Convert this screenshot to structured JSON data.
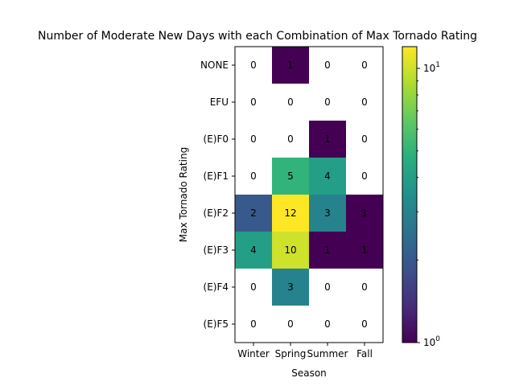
{
  "chart_data": {
    "type": "heatmap",
    "title": "Number of Moderate New Days with each Combination of Max Tornado Rating",
    "xlabel": "Season",
    "ylabel": "Max Tornado Rating",
    "x_categories": [
      "Winter",
      "Spring",
      "Summer",
      "Fall"
    ],
    "y_categories": [
      "NONE",
      "EFU",
      "(E)F0",
      "(E)F1",
      "(E)F2",
      "(E)F3",
      "(E)F4",
      "(E)F5"
    ],
    "values": [
      [
        0,
        1,
        0,
        0
      ],
      [
        0,
        0,
        0,
        0
      ],
      [
        0,
        0,
        1,
        0
      ],
      [
        0,
        5,
        4,
        0
      ],
      [
        2,
        12,
        3,
        1
      ],
      [
        4,
        10,
        1,
        1
      ],
      [
        0,
        3,
        0,
        0
      ],
      [
        0,
        0,
        0,
        0
      ]
    ],
    "color_scale": {
      "type": "log",
      "colormap": "viridis",
      "vmin": 1,
      "vmax": 12,
      "zero_color": "#ffffff",
      "tick_labels": [
        "10^0",
        "10^1"
      ]
    },
    "cell_labels": true,
    "grid": false
  }
}
